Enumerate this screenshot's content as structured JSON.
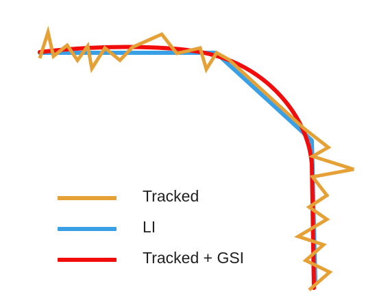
{
  "colors": {
    "tracked": "#E5A136",
    "li": "#3AA0E6",
    "tracked_gsi": "#F20D0D"
  },
  "legend": {
    "items": [
      {
        "key": "tracked",
        "label": "Tracked",
        "color": "#E5A136"
      },
      {
        "key": "li",
        "label": "LI",
        "color": "#3AA0E6"
      },
      {
        "key": "tracked_gsi",
        "label": "Tracked + GSI",
        "color": "#F20D0D"
      }
    ]
  }
}
